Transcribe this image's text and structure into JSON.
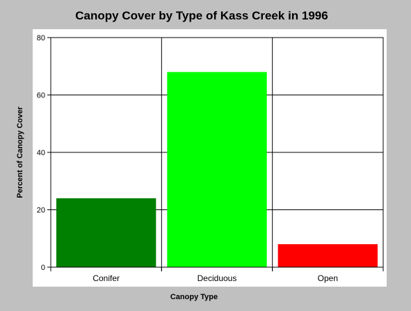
{
  "chart_data": {
    "type": "bar",
    "title": "Canopy Cover by Type of Kass Creek in 1996",
    "xlabel": "Canopy Type",
    "ylabel": "Percent of Canopy Cover",
    "categories": [
      "Conifer",
      "Deciduous",
      "Open"
    ],
    "values": [
      24,
      68,
      8
    ],
    "colors": [
      "#008000",
      "#00ff00",
      "#ff0000"
    ],
    "ylim": [
      0,
      80
    ],
    "yticks": [
      0,
      20,
      40,
      60,
      80
    ],
    "grid": true,
    "legend": "none"
  }
}
